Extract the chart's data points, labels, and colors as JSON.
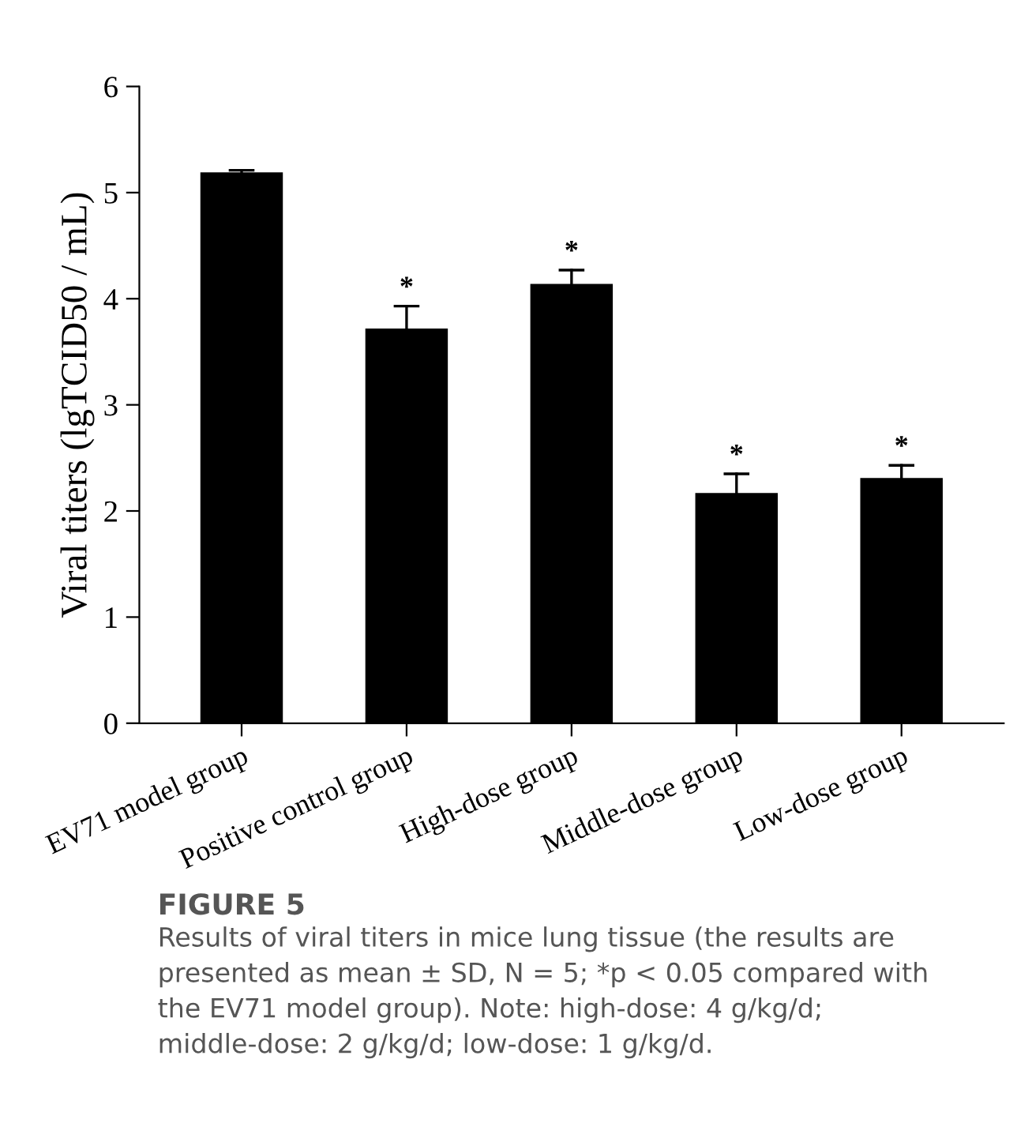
{
  "chart_data": {
    "type": "bar",
    "categories": [
      "EV71 model group",
      "Positive control group",
      "High-dose group",
      "Middle-dose group",
      "Low-dose group"
    ],
    "values": [
      5.19,
      3.72,
      4.14,
      2.17,
      2.31
    ],
    "errors": [
      [
        5.19,
        5.21
      ],
      [
        3.72,
        3.93
      ],
      [
        4.14,
        4.27
      ],
      [
        2.17,
        2.35
      ],
      [
        2.31,
        2.43
      ]
    ],
    "color": "#000000",
    "ylabel": "Viral titers (lgTCID50 / mL)",
    "ylim": [
      0,
      6
    ],
    "yticks": [
      0,
      1,
      2,
      3,
      4,
      5,
      6
    ],
    "grid": false,
    "annotations": [
      {
        "text": "*",
        "x": "Positive control group",
        "y": 3.93
      },
      {
        "text": "*",
        "x": "High-dose group",
        "y": 4.27
      },
      {
        "text": "*",
        "x": "Middle-dose group",
        "y": 2.35
      },
      {
        "text": "*",
        "x": "Low-dose group",
        "y": 2.43
      },
      "FIGURE 5",
      "Results of viral titers in mice lung tissue (the results are presented as mean ± SD, N = 5; *p < 0.05 compared with the EV71 model group). Note: high-dose: 4 g/kg/d; middle-dose: 2 g/kg/d; low-dose: 1 g/kg/d."
    ]
  }
}
